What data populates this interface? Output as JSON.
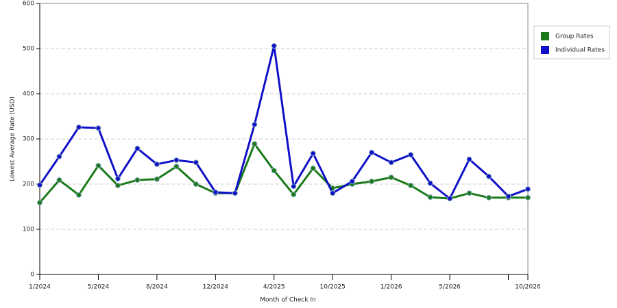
{
  "chart_data": {
    "type": "line",
    "x_label": "Month of Check In",
    "y_label": "Lowest Average Rate (USD)",
    "categories": [
      "1/2024",
      null,
      null,
      "5/2024",
      null,
      null,
      "8/2024",
      null,
      null,
      "12/2024",
      null,
      null,
      "4/2025",
      null,
      null,
      "10/2025",
      null,
      null,
      "1/2026",
      null,
      null,
      "5/2026",
      null,
      null,
      null,
      "10/2026"
    ],
    "series": [
      {
        "name": "Group Rates",
        "color": "#1a7a1a",
        "values": [
          159,
          209,
          176,
          241,
          197,
          209,
          211,
          239,
          200,
          180,
          180,
          289,
          230,
          177,
          235,
          191,
          200,
          206,
          215,
          197,
          171,
          168,
          180,
          170,
          170,
          170
        ]
      },
      {
        "name": "Individual Rates",
        "color": "#1010c8",
        "values": [
          198,
          261,
          326,
          324,
          212,
          279,
          244,
          253,
          248,
          182,
          180,
          332,
          506,
          195,
          268,
          180,
          206,
          270,
          248,
          265,
          202,
          168,
          255,
          217,
          173,
          189
        ]
      }
    ],
    "ylim": [
      0,
      600
    ],
    "yticks": [
      0,
      100,
      200,
      300,
      400,
      500,
      600
    ],
    "grid": true,
    "legend": "right"
  }
}
